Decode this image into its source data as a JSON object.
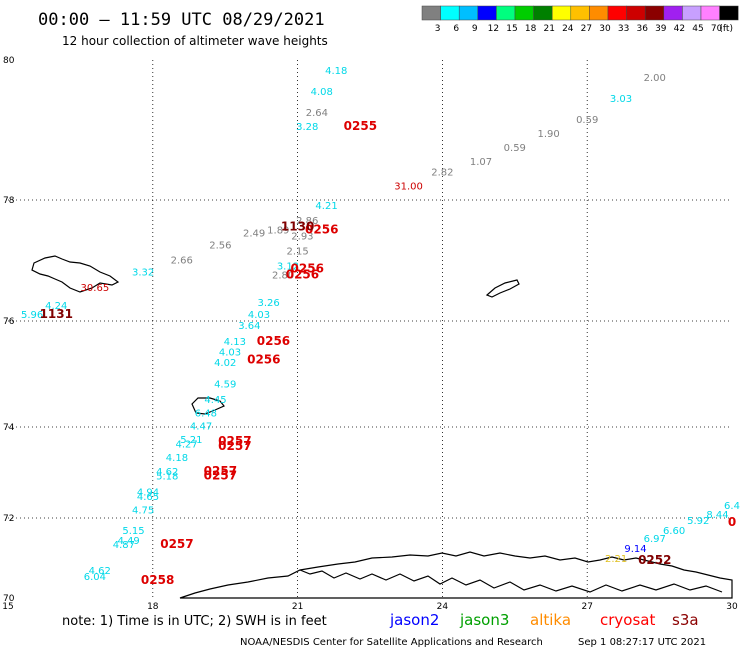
{
  "header": {
    "title": "00:00 – 11:59 UTC 08/29/2021",
    "subtitle": "12 hour collection of altimeter wave heights"
  },
  "legend": {
    "colors": [
      "#808080",
      "#00ffff",
      "#00bfff",
      "#0000ff",
      "#00ff7f",
      "#00cd00",
      "#008000",
      "#ffff00",
      "#ffc000",
      "#ff8c00",
      "#ff0000",
      "#cd0000",
      "#8b0000",
      "#a020f0",
      "#c8a0ff",
      "#ff80ff",
      "#000000"
    ],
    "ticks": [
      "3",
      "6",
      "9",
      "12",
      "15",
      "18",
      "21",
      "24",
      "27",
      "30",
      "33",
      "36",
      "39",
      "42",
      "45",
      "70",
      "(ft)"
    ]
  },
  "axes": {
    "x_ticks": [
      "15",
      "18",
      "21",
      "24",
      "27",
      "30"
    ],
    "y_ticks": [
      "80",
      "78",
      "76",
      "74",
      "72",
      "70"
    ]
  },
  "chart_data": {
    "type": "scatter",
    "x_range": [
      15,
      30
    ],
    "y_range": [
      70,
      80
    ],
    "wave_heights": [
      {
        "lon": 21.8,
        "lat": 79.8,
        "text": "4.18",
        "color": "#00d8e8"
      },
      {
        "lon": 21.5,
        "lat": 79.5,
        "text": "4.08",
        "color": "#00d8e8"
      },
      {
        "lon": 21.4,
        "lat": 79.2,
        "text": "2.64",
        "color": "#808080"
      },
      {
        "lon": 21.2,
        "lat": 79.0,
        "text": "3.28",
        "color": "#00d8e8"
      },
      {
        "lon": 28.4,
        "lat": 79.7,
        "text": "2.00",
        "color": "#808080"
      },
      {
        "lon": 27.7,
        "lat": 79.4,
        "text": "3.03",
        "color": "#00d8e8"
      },
      {
        "lon": 27.0,
        "lat": 79.1,
        "text": "0.59",
        "color": "#808080"
      },
      {
        "lon": 26.2,
        "lat": 78.9,
        "text": "1.90",
        "color": "#808080"
      },
      {
        "lon": 25.5,
        "lat": 78.7,
        "text": "0.59",
        "color": "#808080"
      },
      {
        "lon": 24.8,
        "lat": 78.5,
        "text": "1.07",
        "color": "#808080"
      },
      {
        "lon": 24.0,
        "lat": 78.35,
        "text": "2.82",
        "color": "#808080"
      },
      {
        "lon": 23.3,
        "lat": 78.15,
        "text": "31.00",
        "color": "#cc0000"
      },
      {
        "lon": 21.6,
        "lat": 77.85,
        "text": "4.21",
        "color": "#00d8e8"
      },
      {
        "lon": 21.2,
        "lat": 77.6,
        "text": "2.86",
        "color": "#808080"
      },
      {
        "lon": 20.6,
        "lat": 77.45,
        "text": "1.89",
        "color": "#808080"
      },
      {
        "lon": 21.1,
        "lat": 77.35,
        "text": "2.93",
        "color": "#808080"
      },
      {
        "lon": 20.1,
        "lat": 77.4,
        "text": "2.49",
        "color": "#808080"
      },
      {
        "lon": 21.0,
        "lat": 77.1,
        "text": "2.15",
        "color": "#808080"
      },
      {
        "lon": 19.4,
        "lat": 77.2,
        "text": "2.56",
        "color": "#808080"
      },
      {
        "lon": 18.6,
        "lat": 76.95,
        "text": "2.66",
        "color": "#808080"
      },
      {
        "lon": 17.8,
        "lat": 76.75,
        "text": "3.32",
        "color": "#00d8e8"
      },
      {
        "lon": 20.8,
        "lat": 76.85,
        "text": "3.12",
        "color": "#00d8e8"
      },
      {
        "lon": 20.7,
        "lat": 76.7,
        "text": "2.80",
        "color": "#808080"
      },
      {
        "lon": 16.8,
        "lat": 76.5,
        "text": "30.65",
        "color": "#cc0000"
      },
      {
        "lon": 16.0,
        "lat": 76.2,
        "text": "4.24",
        "color": "#00d8e8"
      },
      {
        "lon": 15.5,
        "lat": 76.05,
        "text": "5.96",
        "color": "#00d8e8"
      },
      {
        "lon": 20.4,
        "lat": 76.25,
        "text": "3.26",
        "color": "#00d8e8"
      },
      {
        "lon": 20.2,
        "lat": 76.05,
        "text": "4.03",
        "color": "#00d8e8"
      },
      {
        "lon": 20.0,
        "lat": 75.85,
        "text": "3.64",
        "color": "#00d8e8"
      },
      {
        "lon": 19.7,
        "lat": 75.55,
        "text": "4.13",
        "color": "#00d8e8"
      },
      {
        "lon": 19.6,
        "lat": 75.35,
        "text": "4.03",
        "color": "#00d8e8"
      },
      {
        "lon": 19.5,
        "lat": 75.15,
        "text": "4.02",
        "color": "#00d8e8"
      },
      {
        "lon": 19.5,
        "lat": 74.75,
        "text": "4.59",
        "color": "#00d8e8"
      },
      {
        "lon": 19.3,
        "lat": 74.45,
        "text": "4.45",
        "color": "#00d8e8"
      },
      {
        "lon": 19.1,
        "lat": 74.2,
        "text": "6.48",
        "color": "#00d8e8"
      },
      {
        "lon": 19.0,
        "lat": 73.95,
        "text": "4.47",
        "color": "#00d8e8"
      },
      {
        "lon": 18.8,
        "lat": 73.65,
        "text": "5.21",
        "color": "#00d8e8"
      },
      {
        "lon": 18.7,
        "lat": 73.55,
        "text": "4.27",
        "color": "#00d8e8"
      },
      {
        "lon": 18.5,
        "lat": 73.25,
        "text": "4.18",
        "color": "#00d8e8"
      },
      {
        "lon": 18.3,
        "lat": 72.95,
        "text": "4.62",
        "color": "#00d8e8"
      },
      {
        "lon": 18.3,
        "lat": 72.85,
        "text": "5.18",
        "color": "#00d8e8"
      },
      {
        "lon": 17.9,
        "lat": 72.5,
        "text": "4.94",
        "color": "#00d8e8"
      },
      {
        "lon": 17.9,
        "lat": 72.4,
        "text": "4.65",
        "color": "#00d8e8"
      },
      {
        "lon": 17.8,
        "lat": 72.1,
        "text": "4.75",
        "color": "#00d8e8"
      },
      {
        "lon": 17.6,
        "lat": 71.6,
        "text": "5.15",
        "color": "#00d8e8"
      },
      {
        "lon": 17.5,
        "lat": 71.35,
        "text": "4.49",
        "color": "#00d8e8"
      },
      {
        "lon": 17.4,
        "lat": 71.25,
        "text": "4.87",
        "color": "#00d8e8"
      },
      {
        "lon": 16.9,
        "lat": 70.6,
        "text": "4.62",
        "color": "#00d8e8"
      },
      {
        "lon": 16.8,
        "lat": 70.45,
        "text": "6.04",
        "color": "#00d8e8"
      },
      {
        "lon": 30.0,
        "lat": 72.2,
        "text": "6.4",
        "color": "#00d8e8"
      },
      {
        "lon": 29.7,
        "lat": 72.0,
        "text": "8.44",
        "color": "#00d8e8"
      },
      {
        "lon": 29.3,
        "lat": 71.85,
        "text": "5.92",
        "color": "#00d8e8"
      },
      {
        "lon": 28.8,
        "lat": 71.6,
        "text": "6.60",
        "color": "#00d8e8"
      },
      {
        "lon": 28.4,
        "lat": 71.4,
        "text": "6.97",
        "color": "#00d8e8"
      },
      {
        "lon": 28.0,
        "lat": 71.15,
        "text": "9.14",
        "color": "#0000ff"
      },
      {
        "lon": 27.6,
        "lat": 70.9,
        "text": "2.21",
        "color": "#e0c020"
      }
    ],
    "pass_times": [
      {
        "lon": 22.3,
        "lat": 79.0,
        "text": "0255",
        "color": "#dd0000"
      },
      {
        "lon": 21.5,
        "lat": 77.45,
        "text": "0256",
        "color": "#dd0000"
      },
      {
        "lon": 21.0,
        "lat": 77.5,
        "text": "1130",
        "color": "#800000"
      },
      {
        "lon": 21.2,
        "lat": 76.8,
        "text": "0256",
        "color": "#dd0000"
      },
      {
        "lon": 21.1,
        "lat": 76.7,
        "text": "0256",
        "color": "#dd0000"
      },
      {
        "lon": 16.0,
        "lat": 76.05,
        "text": "1131",
        "color": "#800000"
      },
      {
        "lon": 20.5,
        "lat": 75.55,
        "text": "0256",
        "color": "#dd0000"
      },
      {
        "lon": 20.3,
        "lat": 75.2,
        "text": "0256",
        "color": "#dd0000"
      },
      {
        "lon": 19.7,
        "lat": 73.6,
        "text": "0257",
        "color": "#dd0000"
      },
      {
        "lon": 19.7,
        "lat": 73.5,
        "text": "0257",
        "color": "#dd0000"
      },
      {
        "lon": 19.4,
        "lat": 72.95,
        "text": "0257",
        "color": "#dd0000"
      },
      {
        "lon": 19.4,
        "lat": 72.85,
        "text": "0257",
        "color": "#dd0000"
      },
      {
        "lon": 18.5,
        "lat": 71.25,
        "text": "0257",
        "color": "#dd0000"
      },
      {
        "lon": 18.1,
        "lat": 70.35,
        "text": "0258",
        "color": "#dd0000"
      },
      {
        "lon": 28.4,
        "lat": 70.85,
        "text": "0252",
        "color": "#800000"
      },
      {
        "lon": 30.0,
        "lat": 71.8,
        "text": "0",
        "color": "#dd0000"
      }
    ]
  },
  "footer": {
    "note": "note:  1) Time is in UTC;  2) SWH is in feet",
    "satellites": [
      {
        "name": "jason2",
        "color": "#0000ff"
      },
      {
        "name": "jason3",
        "color": "#00a000"
      },
      {
        "name": "altika",
        "color": "#ff8c00"
      },
      {
        "name": "cryosat",
        "color": "#ff0000"
      },
      {
        "name": "s3a",
        "color": "#8b0000"
      }
    ],
    "credit": "NOAA/NESDIS Center for Satellite Applications and Research",
    "timestamp": "Sep  1 08:27:17 UTC 2021"
  }
}
